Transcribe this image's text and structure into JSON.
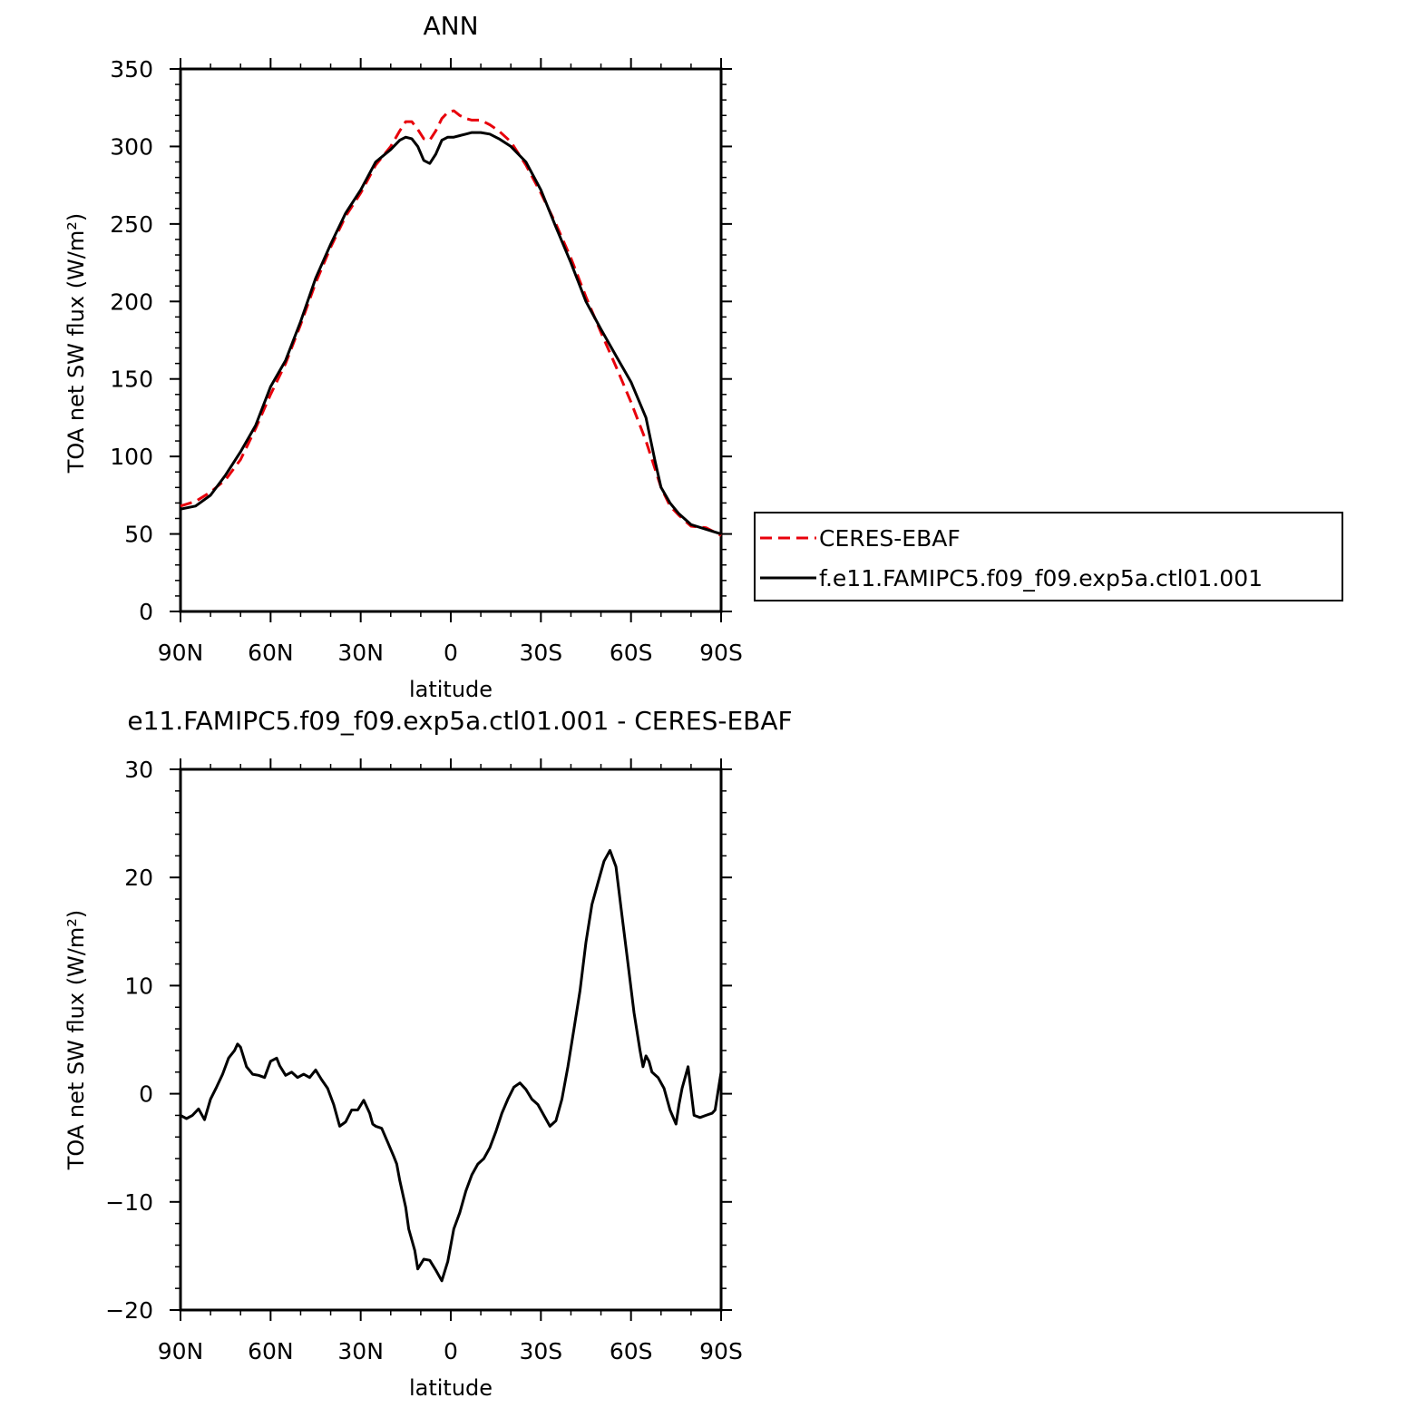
{
  "chart_data": [
    {
      "type": "line",
      "title": "ANN",
      "xlabel": "latitude",
      "ylabel": "TOA net SW flux (W/m²)",
      "x_tick_labels": [
        "90N",
        "60N",
        "30N",
        "0",
        "30S",
        "60S",
        "90S"
      ],
      "x_tick_values": [
        90,
        60,
        30,
        0,
        -30,
        -60,
        -90
      ],
      "xlim": [
        90,
        -90
      ],
      "y_tick_labels": [
        "0",
        "50",
        "100",
        "150",
        "200",
        "250",
        "300",
        "350"
      ],
      "ylim": [
        0,
        350
      ],
      "legend_position": "right",
      "series": [
        {
          "name": "CERES-EBAF",
          "color": "#e8000b",
          "dash": "dashed",
          "x": [
            90,
            85,
            80,
            75,
            70,
            65,
            60,
            55,
            50,
            45,
            40,
            35,
            30,
            25,
            20,
            17,
            15,
            13,
            11,
            9,
            7,
            5,
            3,
            1,
            -1,
            -3,
            -5,
            -7,
            -10,
            -13,
            -16,
            -20,
            -25,
            -30,
            -35,
            -40,
            -45,
            -50,
            -55,
            -60,
            -65,
            -70,
            -73,
            -76,
            -80,
            -85,
            -90
          ],
          "y": [
            68,
            71,
            77,
            85,
            98,
            118,
            140,
            160,
            185,
            212,
            235,
            255,
            270,
            288,
            300,
            310,
            316,
            316,
            311,
            305,
            304,
            310,
            318,
            322,
            323,
            320,
            318,
            317,
            317,
            314,
            310,
            303,
            288,
            270,
            250,
            228,
            203,
            180,
            158,
            135,
            110,
            80,
            68,
            62,
            55,
            54,
            49
          ]
        },
        {
          "name": "f.e11.FAMIPC5.f09_f09.exp5a.ctl01.001",
          "color": "#000000",
          "dash": "solid",
          "x": [
            90,
            85,
            80,
            75,
            70,
            65,
            60,
            55,
            50,
            45,
            40,
            35,
            30,
            25,
            20,
            17,
            15,
            13,
            11,
            9,
            7,
            5,
            3,
            1,
            -1,
            -3,
            -5,
            -7,
            -10,
            -13,
            -16,
            -20,
            -25,
            -30,
            -35,
            -40,
            -45,
            -50,
            -55,
            -60,
            -65,
            -68,
            -70,
            -73,
            -76,
            -80,
            -85,
            -90
          ],
          "y": [
            66,
            68,
            75,
            88,
            103,
            120,
            145,
            162,
            187,
            215,
            237,
            257,
            272,
            290,
            298,
            304,
            306,
            305,
            300,
            291,
            289,
            295,
            304,
            306,
            306,
            307,
            308,
            309,
            309,
            308,
            305,
            300,
            290,
            272,
            248,
            225,
            200,
            182,
            165,
            148,
            125,
            97,
            80,
            70,
            63,
            56,
            53,
            50
          ]
        }
      ]
    },
    {
      "type": "line",
      "title": "e11.FAMIPC5.f09_f09.exp5a.ctl01.001 - CERES-EBAF",
      "xlabel": "latitude",
      "ylabel": "TOA net SW flux (W/m²)",
      "x_tick_labels": [
        "90N",
        "60N",
        "30N",
        "0",
        "30S",
        "60S",
        "90S"
      ],
      "x_tick_values": [
        90,
        60,
        30,
        0,
        -30,
        -60,
        -90
      ],
      "xlim": [
        90,
        -90
      ],
      "y_tick_labels": [
        "−20",
        "−10",
        "0",
        "10",
        "20",
        "30"
      ],
      "ylim": [
        -20,
        30
      ],
      "series": [
        {
          "color": "#000000",
          "dash": "solid",
          "x": [
            90,
            88,
            86,
            84,
            82,
            80,
            78,
            76,
            74,
            72,
            71,
            70,
            68,
            66,
            64,
            62,
            60,
            58,
            57,
            55,
            53,
            51,
            49,
            47,
            45,
            43,
            41,
            39,
            37,
            35,
            33,
            31,
            29,
            27,
            26,
            25,
            23,
            21,
            19,
            18,
            17,
            15,
            14,
            12,
            11,
            9,
            7,
            5,
            3,
            1,
            0,
            -1,
            -3,
            -5,
            -7,
            -9,
            -11,
            -13,
            -15,
            -17,
            -19,
            -21,
            -23,
            -25,
            -27,
            -29,
            -31,
            -33,
            -35,
            -37,
            -39,
            -41,
            -43,
            -45,
            -47,
            -49,
            -51,
            -53,
            -55,
            -57,
            -59,
            -61,
            -63,
            -64,
            -65,
            -66,
            -67,
            -69,
            -71,
            -73,
            -75,
            -76,
            -77,
            -79,
            -81,
            -83,
            -85,
            -87,
            -88,
            -90
          ],
          "y": [
            -2,
            -2.3,
            -2.0,
            -1.4,
            -2.4,
            -0.5,
            0.6,
            1.8,
            3.3,
            4.0,
            4.6,
            4.3,
            2.5,
            1.8,
            1.7,
            1.5,
            3.0,
            3.3,
            2.6,
            1.7,
            2.0,
            1.5,
            1.8,
            1.5,
            2.2,
            1.3,
            0.5,
            -1.0,
            -3.0,
            -2.6,
            -1.5,
            -1.5,
            -0.6,
            -1.8,
            -2.8,
            -3.0,
            -3.2,
            -4.5,
            -5.8,
            -6.5,
            -8.0,
            -10.5,
            -12.5,
            -14.5,
            -16.2,
            -15.3,
            -15.4,
            -16.3,
            -17.3,
            -15.5,
            -14.0,
            -12.5,
            -11.0,
            -9.0,
            -7.5,
            -6.5,
            -6.0,
            -5.0,
            -3.5,
            -1.8,
            -0.5,
            0.6,
            1.0,
            0.4,
            -0.5,
            -1.0,
            -2.0,
            -3.0,
            -2.5,
            -0.5,
            2.5,
            6.0,
            9.5,
            14.0,
            17.5,
            19.5,
            21.5,
            22.5,
            21.0,
            16.5,
            12.0,
            7.5,
            4.0,
            2.5,
            3.5,
            3.0,
            2.0,
            1.5,
            0.5,
            -1.5,
            -2.8,
            -1.0,
            0.5,
            2.5,
            -2.0,
            -2.2,
            -2.0,
            -1.8,
            -1.5,
            2.0
          ]
        }
      ]
    }
  ]
}
